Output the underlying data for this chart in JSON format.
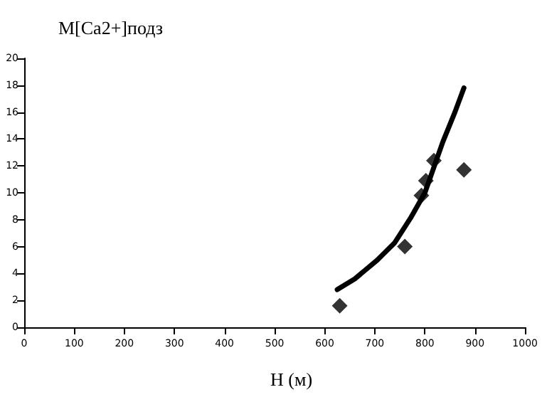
{
  "chart_data": {
    "type": "scatter",
    "ylabel": "M[Ca2+]подз",
    "xlabel": "H (м)",
    "xlim": [
      0,
      1000
    ],
    "xticks": [
      0,
      100,
      200,
      300,
      400,
      500,
      600,
      700,
      800,
      900,
      1000
    ],
    "ylim": [
      0,
      20
    ],
    "yticks": [
      0,
      2,
      4,
      6,
      8,
      10,
      12,
      14,
      16,
      18,
      20
    ],
    "grid": false,
    "marker": "diamond",
    "series": [
      {
        "color": "#000000",
        "x": [
          630,
          760,
          793,
          802,
          818,
          878
        ],
        "values": [
          1.6,
          6.0,
          9.8,
          10.9,
          12.4,
          11.7
        ]
      },
      {
        "type": "line",
        "color": "#000000",
        "marker": "none",
        "line_style": "solid",
        "x": [
          625,
          660,
          705,
          740,
          771,
          800,
          836,
          860,
          878
        ],
        "values": [
          2.8,
          3.6,
          5.0,
          6.3,
          8.1,
          10.0,
          13.8,
          16.0,
          17.8
        ]
      }
    ]
  }
}
